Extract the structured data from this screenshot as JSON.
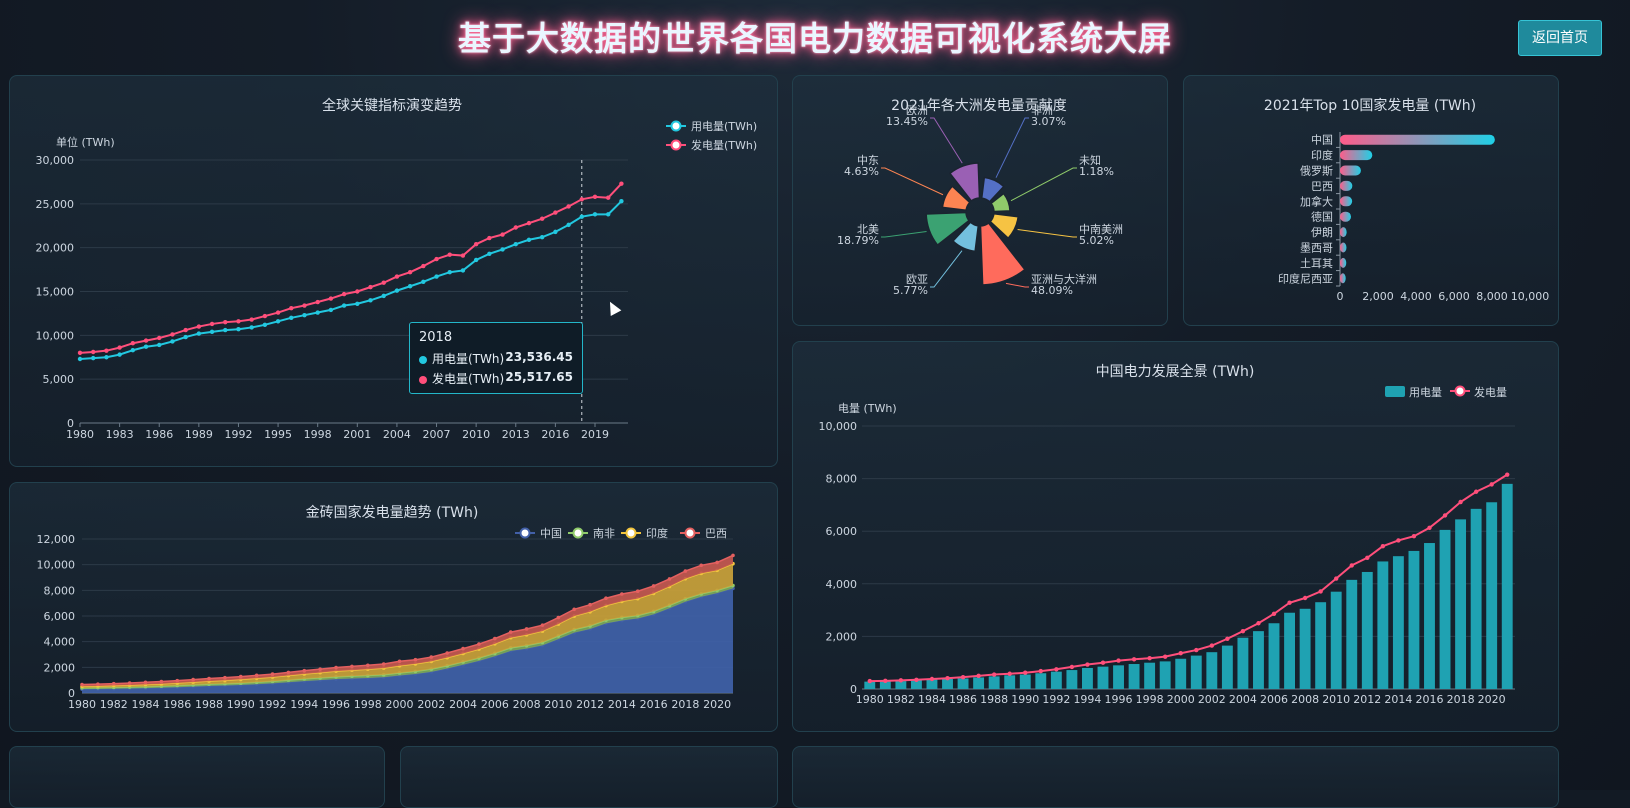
{
  "header": {
    "title": "基于大数据的世界各国电力数据可视化系统大屏",
    "home_button": "返回首页"
  },
  "colors": {
    "cyan": "#22c8e0",
    "pink": "#ff4f7b",
    "barTeal": "#1fa2b2",
    "brics_china": "#4260a8",
    "brics_sa": "#8fca6a",
    "brics_india": "#f2c53d",
    "brics_brazil": "#e46060"
  },
  "chart_data": [
    {
      "id": "global",
      "type": "line",
      "title": "全球关键指标演变趋势",
      "ylabel": "单位 (TWh)",
      "ylim": [
        0,
        30000
      ],
      "yticks": [
        "30,000",
        "25,000",
        "20,000",
        "15,000",
        "10,000",
        "5,000",
        "0"
      ],
      "xticks": [
        "1980",
        "1983",
        "1986",
        "1989",
        "1992",
        "1995",
        "1998",
        "2001",
        "2004",
        "2007",
        "2010",
        "2013",
        "2016",
        "2019"
      ],
      "x": [
        1980,
        1981,
        1982,
        1983,
        1984,
        1985,
        1986,
        1987,
        1988,
        1989,
        1990,
        1991,
        1992,
        1993,
        1994,
        1995,
        1996,
        1997,
        1998,
        1999,
        2000,
        2001,
        2002,
        2003,
        2004,
        2005,
        2006,
        2007,
        2008,
        2009,
        2010,
        2011,
        2012,
        2013,
        2014,
        2015,
        2016,
        2017,
        2018,
        2019,
        2020,
        2021
      ],
      "series": [
        {
          "name": "用电量(TWh)",
          "values": [
            7300,
            7400,
            7500,
            7800,
            8300,
            8700,
            8900,
            9300,
            9800,
            10200,
            10400,
            10600,
            10700,
            10900,
            11200,
            11600,
            12000,
            12300,
            12600,
            12900,
            13400,
            13600,
            14000,
            14500,
            15100,
            15600,
            16100,
            16700,
            17200,
            17400,
            18600,
            19300,
            19800,
            20400,
            20900,
            21200,
            21800,
            22600,
            23536,
            23800,
            23800,
            25300
          ]
        },
        {
          "name": "发电量(TWh)",
          "values": [
            8000,
            8100,
            8250,
            8600,
            9100,
            9400,
            9700,
            10100,
            10600,
            11000,
            11300,
            11500,
            11600,
            11800,
            12200,
            12600,
            13100,
            13400,
            13800,
            14200,
            14700,
            15000,
            15500,
            16000,
            16700,
            17200,
            17900,
            18700,
            19200,
            19100,
            20400,
            21100,
            21500,
            22300,
            22800,
            23300,
            24000,
            24700,
            25518,
            25800,
            25700,
            27300
          ]
        }
      ],
      "tooltip": {
        "year": "2018",
        "rows": [
          {
            "name": "用电量(TWh)",
            "value": "23,536.45"
          },
          {
            "name": "发电量(TWh)",
            "value": "25,517.65"
          }
        ]
      }
    },
    {
      "id": "continents",
      "type": "pie",
      "title": "2021年各大洲发电量贡献度",
      "slices": [
        {
          "name": "亚洲与大洋洲",
          "value": 48.09,
          "label": "48.09%",
          "color": "#ff6b5c"
        },
        {
          "name": "中南美洲",
          "value": 5.02,
          "label": "5.02%",
          "color": "#f6c343"
        },
        {
          "name": "未知",
          "value": 1.18,
          "label": "1.18%",
          "color": "#8fca6a"
        },
        {
          "name": "非洲",
          "value": 3.07,
          "label": "3.07%",
          "color": "#5470c6"
        },
        {
          "name": "欧洲",
          "value": 13.45,
          "label": "13.45%",
          "color": "#9a60b4"
        },
        {
          "name": "中东",
          "value": 4.63,
          "label": "4.63%",
          "color": "#fc8452"
        },
        {
          "name": "北美",
          "value": 18.79,
          "label": "18.79%",
          "color": "#3ba272"
        },
        {
          "name": "欧亚",
          "value": 5.77,
          "label": "5.77%",
          "color": "#73c0de"
        }
      ]
    },
    {
      "id": "top10",
      "type": "bar",
      "title": "2021年Top 10国家发电量 (TWh)",
      "categories": [
        "中国",
        "印度",
        "俄罗斯",
        "巴西",
        "加拿大",
        "德国",
        "伊朗",
        "墨西哥",
        "土耳其",
        "印度尼西亚"
      ],
      "values": [
        8150,
        1700,
        1100,
        650,
        640,
        580,
        350,
        340,
        330,
        300
      ],
      "xlim": [
        0,
        10000
      ],
      "xticks": [
        "0",
        "2,000",
        "4,000",
        "6,000",
        "8,000",
        "10,000"
      ]
    },
    {
      "id": "brics",
      "type": "area",
      "title": "金砖国家发电量趋势 (TWh)",
      "ylim": [
        0,
        12000
      ],
      "yticks": [
        "12,000",
        "10,000",
        "8,000",
        "6,000",
        "4,000",
        "2,000",
        "0"
      ],
      "xticks": [
        "1980",
        "1982",
        "1984",
        "1986",
        "1988",
        "1990",
        "1992",
        "1994",
        "1996",
        "1998",
        "2000",
        "2002",
        "2004",
        "2006",
        "2008",
        "2010",
        "2012",
        "2014",
        "2016",
        "2018",
        "2020"
      ],
      "x": [
        1980,
        1981,
        1982,
        1983,
        1984,
        1985,
        1986,
        1987,
        1988,
        1989,
        1990,
        1991,
        1992,
        1993,
        1994,
        1995,
        1996,
        1997,
        1998,
        1999,
        2000,
        2001,
        2002,
        2003,
        2004,
        2005,
        2006,
        2007,
        2008,
        2009,
        2010,
        2011,
        2012,
        2013,
        2014,
        2015,
        2016,
        2017,
        2018,
        2019,
        2020,
        2021
      ],
      "series": [
        {
          "name": "中国",
          "values": [
            300,
            310,
            330,
            350,
            380,
            410,
            450,
            500,
            550,
            580,
            620,
            680,
            750,
            840,
            930,
            1000,
            1080,
            1130,
            1170,
            1230,
            1360,
            1480,
            1650,
            1910,
            2200,
            2500,
            2860,
            3280,
            3460,
            3710,
            4200,
            4700,
            4990,
            5430,
            5650,
            5810,
            6130,
            6600,
            7110,
            7500,
            7780,
            8150
          ]
        },
        {
          "name": "南非",
          "values": [
            100,
            105,
            110,
            115,
            120,
            125,
            130,
            135,
            140,
            145,
            150,
            155,
            160,
            165,
            170,
            175,
            180,
            185,
            190,
            195,
            200,
            205,
            210,
            215,
            220,
            225,
            230,
            235,
            240,
            235,
            240,
            245,
            240,
            235,
            235,
            230,
            230,
            230,
            230,
            225,
            215,
            225
          ]
        },
        {
          "name": "印度",
          "values": [
            120,
            130,
            140,
            150,
            165,
            180,
            195,
            215,
            235,
            255,
            290,
            310,
            330,
            355,
            385,
            415,
            440,
            460,
            490,
            515,
            560,
            580,
            600,
            630,
            660,
            690,
            740,
            790,
            830,
            880,
            930,
            1050,
            1100,
            1150,
            1250,
            1310,
            1400,
            1470,
            1560,
            1600,
            1560,
            1700
          ]
        },
        {
          "name": "巴西",
          "values": [
            140,
            145,
            150,
            160,
            170,
            180,
            190,
            195,
            205,
            215,
            220,
            230,
            235,
            245,
            255,
            270,
            285,
            300,
            310,
            320,
            350,
            330,
            340,
            360,
            380,
            400,
            410,
            440,
            460,
            460,
            510,
            530,
            550,
            570,
            580,
            580,
            580,
            590,
            600,
            625,
            620,
            650
          ]
        }
      ]
    },
    {
      "id": "china",
      "type": "bar",
      "title": "中国电力发展全景 (TWh)",
      "ylabel": "电量 (TWh)",
      "ylim": [
        0,
        10000
      ],
      "yticks": [
        "10,000",
        "8,000",
        "6,000",
        "4,000",
        "2,000",
        "0"
      ],
      "xticks": [
        "1980",
        "1982",
        "1984",
        "1986",
        "1988",
        "1990",
        "1992",
        "1994",
        "1996",
        "1998",
        "2000",
        "2002",
        "2004",
        "2006",
        "2008",
        "2010",
        "2012",
        "2014",
        "2016",
        "2018",
        "2020"
      ],
      "x": [
        1980,
        1981,
        1982,
        1983,
        1984,
        1985,
        1986,
        1987,
        1988,
        1989,
        1990,
        1991,
        1992,
        1993,
        1994,
        1995,
        1996,
        1997,
        1998,
        1999,
        2000,
        2001,
        2002,
        2003,
        2004,
        2005,
        2006,
        2007,
        2008,
        2009,
        2010,
        2011,
        2012,
        2013,
        2014,
        2015,
        2016,
        2017,
        2018,
        2019,
        2020,
        2021
      ],
      "series": [
        {
          "name": "用电量",
          "values": [
            280,
            285,
            300,
            330,
            360,
            380,
            400,
            440,
            480,
            520,
            550,
            600,
            660,
            720,
            800,
            850,
            900,
            950,
            1000,
            1050,
            1150,
            1270,
            1400,
            1650,
            1950,
            2200,
            2500,
            2900,
            3050,
            3300,
            3700,
            4150,
            4450,
            4850,
            5050,
            5250,
            5550,
            6050,
            6450,
            6850,
            7100,
            7800
          ]
        },
        {
          "name": "发电量",
          "values": [
            300,
            310,
            330,
            350,
            380,
            410,
            450,
            500,
            550,
            580,
            620,
            680,
            750,
            840,
            930,
            1000,
            1080,
            1130,
            1170,
            1230,
            1360,
            1480,
            1650,
            1910,
            2200,
            2500,
            2860,
            3280,
            3460,
            3710,
            4200,
            4700,
            4990,
            5430,
            5650,
            5810,
            6130,
            6600,
            7110,
            7500,
            7780,
            8150
          ]
        }
      ]
    }
  ]
}
